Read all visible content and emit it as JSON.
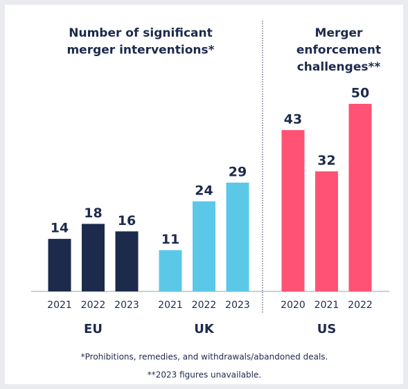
{
  "chart_data": [
    {
      "type": "bar",
      "title": [
        "Number of significant",
        "merger interventions*"
      ],
      "groups": [
        {
          "name": "EU",
          "color": "#1c2a4b",
          "categories": [
            "2021",
            "2022",
            "2023"
          ],
          "values": [
            14,
            18,
            16
          ]
        },
        {
          "name": "UK",
          "color": "#5bc8e8",
          "categories": [
            "2021",
            "2022",
            "2023"
          ],
          "values": [
            11,
            24,
            29
          ]
        }
      ]
    },
    {
      "type": "bar",
      "title": [
        "Merger",
        "enforcement",
        "challenges**"
      ],
      "groups": [
        {
          "name": "US",
          "color": "#ff5274",
          "categories": [
            "2020",
            "2021",
            "2022"
          ],
          "values": [
            43,
            32,
            50
          ]
        }
      ]
    }
  ],
  "notes": [
    "*Prohibitions, remedies, and withdrawals/abandoned deals.",
    "**2023 figures unavailable."
  ]
}
